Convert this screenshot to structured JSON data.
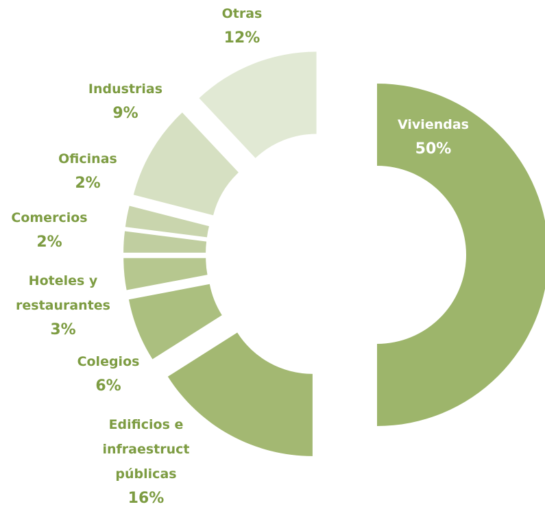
{
  "chart_data": {
    "type": "donut",
    "categories": [
      "Viviendas",
      "Edificios e infraestruct públicas",
      "Colegios",
      "Hoteles y restaurantes",
      "Comercios",
      "Oficinas",
      "Industrias",
      "Otras"
    ],
    "values": [
      50,
      16,
      6,
      3,
      2,
      2,
      9,
      12
    ],
    "value_labels": [
      "50%",
      "16%",
      "6%",
      "3%",
      "2%",
      "2%",
      "9%",
      "12%"
    ],
    "colors": [
      "#9db56b",
      "#a3b872",
      "#abbf7f",
      "#b6c78f",
      "#c0cea0",
      "#c9d5ad",
      "#d6e0c2",
      "#e1e9d4"
    ]
  }
}
